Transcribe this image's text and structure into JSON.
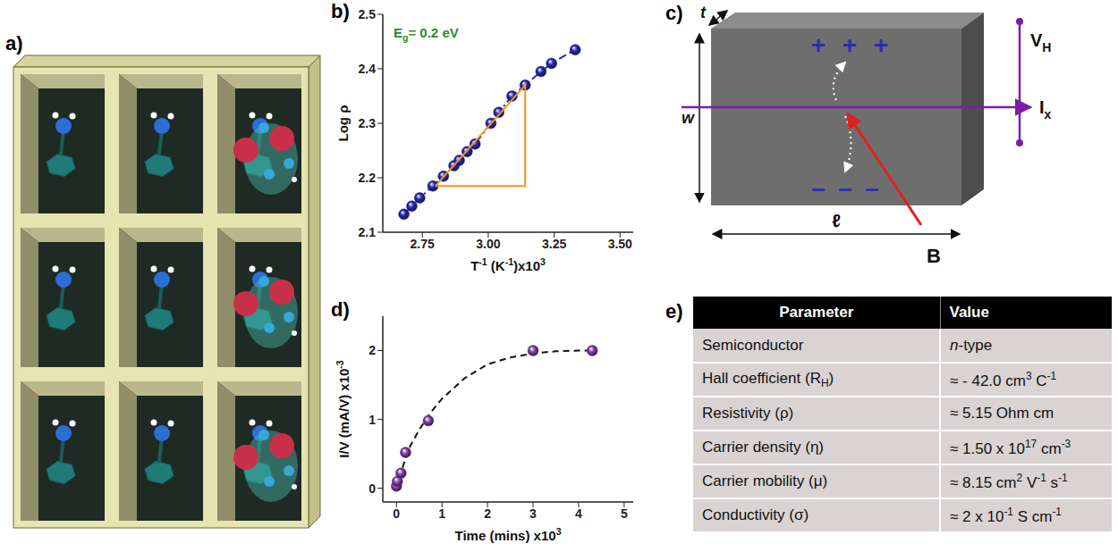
{
  "panel_labels": [
    "a)",
    "b)",
    "c)",
    "d)",
    "e)"
  ],
  "chart_data": [
    {
      "type": "scatter",
      "x_label": [
        "T",
        {
          "sup": "-1"
        },
        " (K",
        {
          "sup": "-1"
        },
        ")x10",
        {
          "sup": "3"
        }
      ],
      "y_label": "Log ρ",
      "xlim": [
        2.6,
        3.55
      ],
      "xticks": [
        2.75,
        {
          "value": 3,
          "label": "3.00"
        },
        3.25,
        {
          "value": 3.5,
          "label": "3.50"
        }
      ],
      "ylim": [
        2.1,
        2.5
      ],
      "yticks": [
        2.1,
        2.2,
        2.3,
        2.4,
        2.5
      ],
      "annotation": [
        "E",
        {
          "sub": "g"
        },
        "= 0.2 eV"
      ],
      "series": [
        {
          "color": "#2a2ab8",
          "marker": "circle",
          "line_style": "dashdot",
          "x": [
            2.68,
            2.71,
            2.74,
            2.79,
            2.83,
            2.87,
            2.89,
            2.92,
            2.95,
            3.01,
            3.04,
            3.09,
            3.14,
            3.2,
            3.24,
            3.33
          ],
          "values": [
            2.133,
            2.148,
            2.163,
            2.185,
            2.203,
            2.222,
            2.232,
            2.248,
            2.262,
            2.3,
            2.32,
            2.35,
            2.37,
            2.395,
            2.41,
            2.435
          ]
        },
        {
          "color": "#f7941d",
          "marker": "none",
          "line_style": "solid",
          "x": [
            2.8,
            3.14,
            3.14,
            2.8
          ],
          "values": [
            2.185,
            2.185,
            2.37,
            2.185
          ]
        }
      ]
    },
    {
      "type": "scatter",
      "x_label": [
        "Time (mins) x10",
        {
          "sup": "3"
        }
      ],
      "y_label": [
        "I/V (mA/V) x10",
        {
          "sup": "-3"
        }
      ],
      "xlim": [
        -0.3,
        5.2
      ],
      "xticks": [
        0,
        1,
        2,
        3,
        4,
        5
      ],
      "ylim": [
        -0.2,
        2.5
      ],
      "yticks": [
        0,
        1,
        2
      ],
      "series": [
        {
          "color": "#111111",
          "marker": "none",
          "line_style": "dashed",
          "x": [
            0,
            0.25,
            0.5,
            0.75,
            1,
            1.5,
            2,
            2.5,
            3,
            3.5,
            4,
            4.3
          ],
          "values": [
            0,
            0.55,
            0.85,
            1.1,
            1.3,
            1.6,
            1.8,
            1.9,
            1.96,
            1.99,
            2.0,
            2.0
          ]
        },
        {
          "color": "#8e44ad",
          "marker": "circle",
          "line_style": "none",
          "x": [
            0,
            0.02,
            0.1,
            0.2,
            0.7,
            3.0,
            4.3
          ],
          "values": [
            0.03,
            0.1,
            0.22,
            0.52,
            0.98,
            2.0,
            2.0
          ]
        }
      ]
    }
  ],
  "diagram_c": {
    "thickness": "t",
    "width": "w",
    "length": "ℓ",
    "voltage": [
      "V",
      {
        "sub": "H"
      }
    ],
    "current": [
      "I",
      {
        "sub": "x"
      }
    ],
    "field": "B",
    "top_charges": [
      "+",
      "+",
      "+"
    ],
    "bottom_charges": [
      "–",
      "–",
      "–"
    ]
  },
  "table_e": {
    "header": [
      "Parameter",
      "Value"
    ],
    "rows": [
      [
        "Semiconductor",
        [
          {
            "i": "n"
          },
          "-type"
        ]
      ],
      [
        [
          "Hall coefficient (R",
          {
            "sub": "H"
          },
          ")"
        ],
        [
          "≈ - 42.0 cm",
          {
            "sup": "3"
          },
          " C",
          {
            "sup": "-1"
          }
        ]
      ],
      [
        "Resistivity (ρ)",
        "≈ 5.15 Ohm cm"
      ],
      [
        "Carrier density (η)",
        [
          "≈ 1.50 x 10",
          {
            "sup": "17"
          },
          " cm",
          {
            "sup": "-3"
          }
        ]
      ],
      [
        "Carrier mobility (μ)",
        [
          "≈ 8.15 cm",
          {
            "sup": "2"
          },
          " V",
          {
            "sup": "-1"
          },
          " s",
          {
            "sup": "-1"
          }
        ]
      ],
      [
        "Conductivity (σ)",
        [
          "≈ 2 x 10",
          {
            "sup": "-1"
          },
          " S cm",
          {
            "sup": "-1"
          }
        ]
      ]
    ]
  }
}
